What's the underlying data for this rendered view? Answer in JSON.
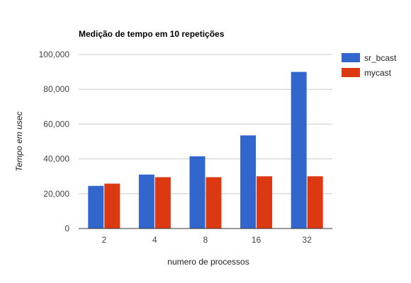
{
  "chart_data": {
    "type": "bar",
    "title": "Medição de tempo em 10 repetições",
    "xlabel": "numero de processos",
    "ylabel": "Tempo em usec",
    "categories": [
      "2",
      "4",
      "8",
      "16",
      "32"
    ],
    "series": [
      {
        "name": "sr_bcast",
        "color": "#3366cc",
        "values": [
          24500,
          31000,
          41500,
          53500,
          90000
        ]
      },
      {
        "name": "mycast",
        "color": "#dc3912",
        "values": [
          25800,
          29500,
          29500,
          30000,
          30000
        ]
      }
    ],
    "ylim": [
      0,
      100000
    ],
    "yticks": [
      0,
      20000,
      40000,
      60000,
      80000,
      100000
    ],
    "ytick_labels": [
      "0",
      "20,000",
      "40,000",
      "60,000",
      "80,000",
      "100,000"
    ],
    "grid": true,
    "legend_position": "right"
  }
}
